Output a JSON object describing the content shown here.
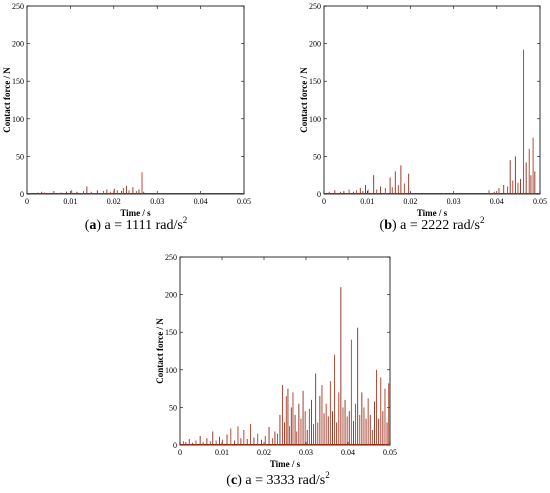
{
  "chart_data": [
    {
      "type": "line",
      "caption": {
        "open": "(",
        "letter": "a",
        "close": ")",
        "text": " a = 1111 rad/s",
        "sup": "2"
      },
      "xlabel": "Time / s",
      "ylabel": "Contact force / N",
      "xlim": [
        0,
        0.05
      ],
      "ylim": [
        0,
        250
      ],
      "xticks": [
        "0",
        "0.01",
        "0.02",
        "0.03",
        "0.04",
        "0.05"
      ],
      "yticks": [
        "0",
        "50",
        "100",
        "150",
        "200",
        "250"
      ],
      "grid": false,
      "x": [
        0.0025,
        0.0034,
        0.004,
        0.0062,
        0.0078,
        0.0091,
        0.0103,
        0.0115,
        0.013,
        0.0138,
        0.0148,
        0.0162,
        0.0176,
        0.0184,
        0.0192,
        0.0201,
        0.0208,
        0.0218,
        0.0222,
        0.0229,
        0.0235,
        0.0244,
        0.0252,
        0.0258,
        0.0265,
        0.0269
      ],
      "values": [
        2,
        3,
        2,
        4,
        2,
        3,
        5,
        3,
        4,
        10,
        3,
        5,
        4,
        6,
        3,
        7,
        5,
        4,
        8,
        11,
        5,
        9,
        4,
        6,
        29,
        3
      ]
    },
    {
      "type": "line",
      "caption": {
        "open": "(",
        "letter": "b",
        "close": ")",
        "text": " a = 2222 rad/s",
        "sup": "2"
      },
      "xlabel": "Time / s",
      "ylabel": "Contact force / N",
      "xlim": [
        0,
        0.05
      ],
      "ylim": [
        0,
        250
      ],
      "xticks": [
        "0",
        "0.01",
        "0.02",
        "0.03",
        "0.04",
        "0.05"
      ],
      "yticks": [
        "0",
        "50",
        "100",
        "150",
        "200",
        "250"
      ],
      "grid": false,
      "x": [
        0.0012,
        0.0025,
        0.0038,
        0.0046,
        0.0058,
        0.0068,
        0.0075,
        0.0084,
        0.009,
        0.0096,
        0.0102,
        0.0115,
        0.0122,
        0.0131,
        0.0142,
        0.0153,
        0.0158,
        0.0165,
        0.0172,
        0.0178,
        0.0186,
        0.0196,
        0.0382,
        0.0394,
        0.0405,
        0.0416,
        0.0425,
        0.0431,
        0.0437,
        0.0443,
        0.0449,
        0.0455,
        0.0462,
        0.0468,
        0.0475,
        0.0479,
        0.0484,
        0.0488
      ],
      "values": [
        3,
        5,
        3,
        4,
        6,
        3,
        5,
        8,
        4,
        12,
        6,
        25,
        6,
        10,
        8,
        22,
        9,
        30,
        12,
        38,
        14,
        27,
        5,
        3,
        8,
        12,
        10,
        45,
        18,
        50,
        15,
        20,
        192,
        42,
        60,
        25,
        75,
        30
      ]
    },
    {
      "type": "line",
      "caption": {
        "open": "(",
        "letter": "c",
        "close": ")",
        "text": " a = 3333 rad/s",
        "sup": "2"
      },
      "xlabel": "Time / s",
      "ylabel": "Contact force / N",
      "xlim": [
        0,
        0.05
      ],
      "ylim": [
        0,
        250
      ],
      "xticks": [
        "0",
        "0.01",
        "0.02",
        "0.03",
        "0.04",
        "0.05"
      ],
      "yticks": [
        "0",
        "50",
        "100",
        "150",
        "200",
        "250"
      ],
      "grid": false,
      "x": [
        0.0008,
        0.0014,
        0.0022,
        0.003,
        0.0038,
        0.0048,
        0.0055,
        0.0064,
        0.0072,
        0.0078,
        0.0086,
        0.0094,
        0.0101,
        0.0112,
        0.0121,
        0.013,
        0.0138,
        0.0145,
        0.0152,
        0.016,
        0.0168,
        0.0176,
        0.0185,
        0.0194,
        0.0203,
        0.0212,
        0.022,
        0.0226,
        0.0232,
        0.0238,
        0.0244,
        0.0249,
        0.0253,
        0.0257,
        0.0261,
        0.0265,
        0.0269,
        0.0274,
        0.0278,
        0.0283,
        0.0288,
        0.0293,
        0.0298,
        0.0303,
        0.0308,
        0.0313,
        0.0318,
        0.0323,
        0.0328,
        0.0333,
        0.0338,
        0.0343,
        0.0348,
        0.0353,
        0.0358,
        0.0363,
        0.0368,
        0.0373,
        0.0378,
        0.0383,
        0.0388,
        0.0393,
        0.0398,
        0.0403,
        0.0408,
        0.0413,
        0.0418,
        0.0423,
        0.0428,
        0.0433,
        0.0438,
        0.0443,
        0.0448,
        0.0453,
        0.0458,
        0.0463,
        0.0468,
        0.0473,
        0.0478,
        0.0483,
        0.0488,
        0.0493,
        0.0497
      ],
      "values": [
        5,
        4,
        8,
        3,
        6,
        12,
        4,
        9,
        5,
        18,
        6,
        11,
        7,
        14,
        22,
        6,
        25,
        9,
        20,
        8,
        28,
        10,
        15,
        7,
        12,
        24,
        9,
        18,
        15,
        40,
        80,
        30,
        65,
        75,
        25,
        50,
        70,
        40,
        18,
        55,
        35,
        72,
        45,
        20,
        48,
        60,
        28,
        95,
        30,
        65,
        80,
        42,
        55,
        38,
        85,
        45,
        120,
        30,
        70,
        210,
        50,
        60,
        38,
        45,
        140,
        32,
        55,
        156,
        40,
        70,
        50,
        35,
        62,
        40,
        20,
        58,
        100,
        35,
        90,
        45,
        75,
        30,
        82
      ]
    }
  ],
  "colors": {
    "spike": "#8b2a1a",
    "spikeMid": "#b03a22",
    "axis": "#000000"
  }
}
